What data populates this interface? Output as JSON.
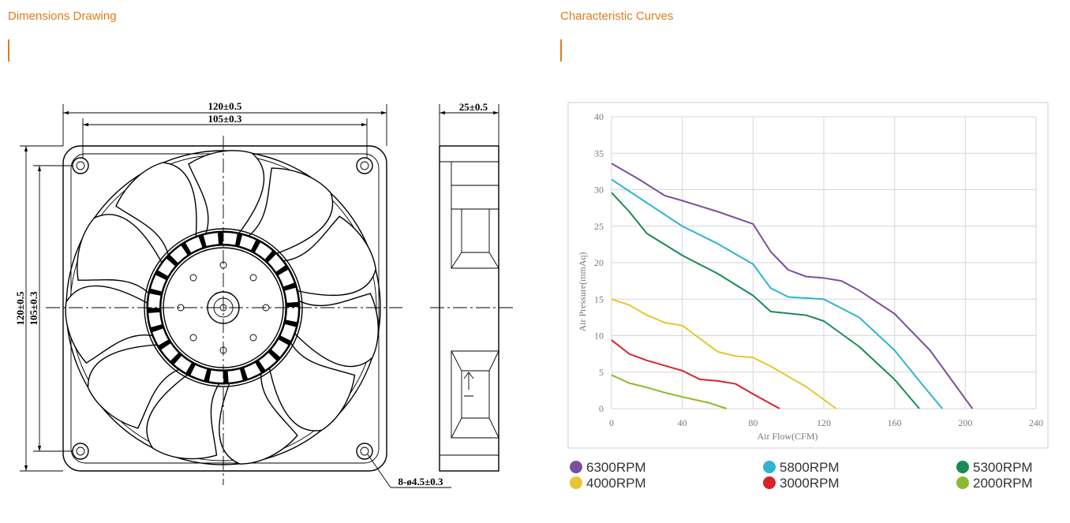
{
  "sections": {
    "left": {
      "title": "Dimensions Drawing"
    },
    "right": {
      "title": "Characteristic Curves"
    }
  },
  "drawing": {
    "overall_width": "120±0.5",
    "hole_spacing_width": "105±0.3",
    "overall_height": "120±0.5",
    "hole_spacing_height": "105±0.3",
    "depth": "25±0.5",
    "mounting_holes": "8-ø4.5±0.3"
  },
  "chart_data": {
    "type": "line",
    "x_label": "Air Flow(CFM)",
    "y_label": "Air Pressure(mmAq)",
    "xlim": [
      0,
      240
    ],
    "xticks": [
      0,
      40,
      80,
      120,
      160,
      200,
      240
    ],
    "ylim": [
      0,
      40
    ],
    "yticks": [
      0,
      5,
      10,
      15,
      20,
      25,
      30,
      35,
      40
    ],
    "grid": true,
    "series": [
      {
        "name": "6300RPM",
        "color": "#7b4fa0",
        "x": [
          0,
          15,
          30,
          40,
          60,
          80,
          90,
          100,
          110,
          120,
          130,
          140,
          160,
          180,
          195,
          204
        ],
        "values": [
          33.6,
          31.5,
          29.2,
          28.5,
          27,
          25.3,
          21.5,
          19,
          18.1,
          17.9,
          17.5,
          16.2,
          13,
          8,
          3,
          0
        ]
      },
      {
        "name": "5800RPM",
        "color": "#2fb3d3",
        "x": [
          0,
          20,
          40,
          60,
          80,
          90,
          100,
          120,
          140,
          160,
          175,
          187
        ],
        "values": [
          31.4,
          28.2,
          25,
          22.6,
          19.8,
          16.5,
          15.3,
          15,
          12.5,
          8,
          3.5,
          0
        ]
      },
      {
        "name": "5300RPM",
        "color": "#1a8a55",
        "x": [
          0,
          10,
          20,
          40,
          60,
          80,
          90,
          110,
          120,
          140,
          160,
          174
        ],
        "values": [
          29.6,
          27,
          24,
          21,
          18.5,
          15.5,
          13.3,
          12.8,
          12,
          8.5,
          4,
          0
        ]
      },
      {
        "name": "4000RPM",
        "color": "#e8c52e",
        "x": [
          0,
          10,
          20,
          30,
          40,
          50,
          60,
          70,
          80,
          90,
          110,
          127
        ],
        "values": [
          15,
          14.2,
          12.8,
          11.8,
          11.4,
          9.6,
          7.8,
          7.2,
          7,
          5.8,
          3,
          0
        ]
      },
      {
        "name": "3000RPM",
        "color": "#d8222b",
        "x": [
          0,
          10,
          20,
          40,
          50,
          60,
          70,
          80,
          95
        ],
        "values": [
          9.4,
          7.5,
          6.6,
          5.2,
          4,
          3.8,
          3.4,
          2,
          0
        ]
      },
      {
        "name": "2000RPM",
        "color": "#8db832",
        "x": [
          0,
          10,
          20,
          30,
          40,
          55,
          65
        ],
        "values": [
          4.6,
          3.5,
          2.9,
          2.2,
          1.6,
          0.8,
          0
        ]
      }
    ]
  }
}
